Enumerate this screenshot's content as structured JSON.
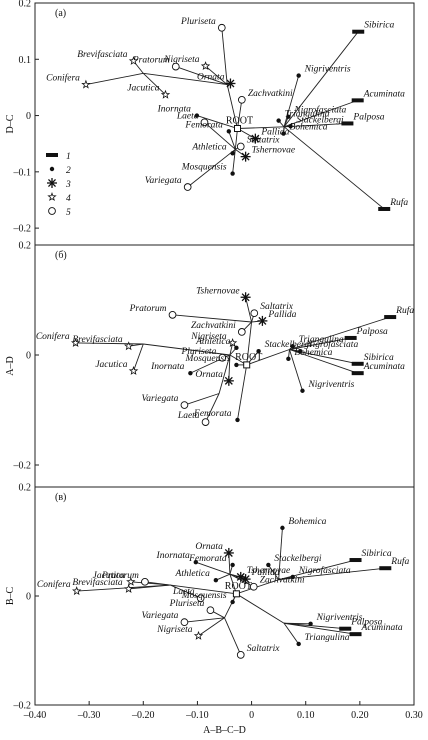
{
  "chart_data": [
    {
      "type": "tree-scatter",
      "panel_label": "(а)",
      "ylabel": "D–C",
      "xlim": [
        -0.4,
        0.3
      ],
      "ylim": [
        -0.23,
        0.2
      ],
      "yticks": [
        0.2,
        0.1,
        0,
        {
          "value": -0.1,
          "label": "–0.1"
        },
        {
          "value": -0.2,
          "label": "–0.2"
        }
      ],
      "legend": {
        "labels": [
          "1",
          "2",
          "3",
          "4",
          "5"
        ]
      },
      "root": {
        "label": "ROOT",
        "x": -0.026,
        "y": -0.023
      },
      "branches": [
        {
          "x": -0.045,
          "y": 0.055,
          "parent": null
        },
        {
          "x": -0.2,
          "y": 0.075,
          "parent": 0
        },
        {
          "x": 0.06,
          "y": -0.02,
          "parent": null
        },
        {
          "x": -0.03,
          "y": -0.06,
          "parent": null
        }
      ],
      "points": [
        {
          "label": "Sibirica",
          "group": 0,
          "x": 0.197,
          "y": 0.149,
          "parent": 2
        },
        {
          "label": "Acuminata",
          "group": 0,
          "x": 0.196,
          "y": 0.027,
          "parent": 2
        },
        {
          "label": "Palposa",
          "group": 0,
          "x": 0.177,
          "y": -0.014,
          "parent": 2
        },
        {
          "label": "Rufa",
          "group": 0,
          "x": 0.245,
          "y": -0.166,
          "parent": 2
        },
        {
          "label": "Nigriventris",
          "group": 1,
          "x": 0.087,
          "y": 0.071,
          "parent": 2
        },
        {
          "label": "Nigrofasciata",
          "group": 1,
          "x": 0.068,
          "y": -0.002,
          "parent": 2
        },
        {
          "label": "Triangulina",
          "group": 1,
          "x": 0.05,
          "y": -0.009,
          "parent": 2
        },
        {
          "label": "Stackelbergi",
          "group": 1,
          "x": 0.072,
          "y": -0.019,
          "parent": 2
        },
        {
          "label": "Bohemica",
          "group": 1,
          "x": 0.059,
          "y": -0.032,
          "parent": 2
        },
        {
          "label": "Pluriseta",
          "group": 4,
          "x": -0.055,
          "y": 0.156,
          "parent": 0
        },
        {
          "label": "Nigriseta",
          "group": 3,
          "x": -0.085,
          "y": 0.088,
          "parent": 0
        },
        {
          "label": "Pratorum",
          "group": 4,
          "x": -0.14,
          "y": 0.087,
          "parent": 0
        },
        {
          "label": "Ornata",
          "group": 2,
          "x": -0.039,
          "y": 0.057,
          "parent": 0
        },
        {
          "label": "Brevifasciata",
          "group": 3,
          "x": -0.218,
          "y": 0.097,
          "parent": 1
        },
        {
          "label": "Conifera",
          "group": 3,
          "x": -0.306,
          "y": 0.055,
          "parent": 1
        },
        {
          "label": "Jacutica",
          "group": 3,
          "x": -0.159,
          "y": 0.037,
          "parent": 1
        },
        {
          "label": "Zachvatkini",
          "group": 4,
          "x": -0.018,
          "y": 0.028,
          "parent": null
        },
        {
          "label": "Inornata",
          "group": 1,
          "x": -0.101,
          "y": 0.0,
          "parent": null
        },
        {
          "label": "Laeta",
          "group": 4,
          "x": -0.087,
          "y": -0.012,
          "parent": 3
        },
        {
          "label": "Pallida",
          "group": 2,
          "x": 0.007,
          "y": -0.041,
          "parent": null
        },
        {
          "label": "Femorata",
          "group": 1,
          "x": -0.042,
          "y": -0.028,
          "parent": 3
        },
        {
          "label": "Saltatrix",
          "group": 4,
          "x": -0.02,
          "y": -0.055,
          "parent": 3
        },
        {
          "label": "Athletica",
          "group": 1,
          "x": -0.035,
          "y": -0.067,
          "parent": 3
        },
        {
          "label": "Tshernovae",
          "group": 2,
          "x": -0.011,
          "y": -0.073,
          "parent": 3
        },
        {
          "label": "Mosquensis",
          "group": 1,
          "x": -0.035,
          "y": -0.103,
          "parent": 3
        },
        {
          "label": "Variegata",
          "group": 4,
          "x": -0.118,
          "y": -0.127,
          "parent": 3
        }
      ]
    },
    {
      "type": "tree-scatter",
      "panel_label": "(б)",
      "ylabel": "A–D",
      "xlim": [
        -0.4,
        0.3
      ],
      "ylim": [
        -0.24,
        0.2
      ],
      "yticks": [
        0.2,
        0,
        {
          "value": -0.2,
          "label": "–0.2"
        }
      ],
      "root": {
        "label": "ROOT",
        "x": -0.009,
        "y": -0.018
      },
      "branches": [
        {
          "x": 0.07,
          "y": 0.01,
          "parent": null
        },
        {
          "x": 0.0,
          "y": 0.06,
          "parent": null
        },
        {
          "x": -0.04,
          "y": 0.0,
          "parent": null
        },
        {
          "x": -0.2,
          "y": 0.02,
          "parent": 2
        },
        {
          "x": -0.06,
          "y": -0.07,
          "parent": 2
        }
      ],
      "points": [
        {
          "label": "Rufa",
          "group": 0,
          "x": 0.256,
          "y": 0.069,
          "parent": 0
        },
        {
          "label": "Palposa",
          "group": 0,
          "x": 0.183,
          "y": 0.031,
          "parent": 0
        },
        {
          "label": "Sibirica",
          "group": 0,
          "x": 0.196,
          "y": -0.016,
          "parent": 0
        },
        {
          "label": "Acuminata",
          "group": 0,
          "x": 0.196,
          "y": -0.033,
          "parent": 0
        },
        {
          "label": "Nigrofasciata",
          "group": 1,
          "x": 0.09,
          "y": 0.007,
          "parent": 0
        },
        {
          "label": "Triangulina",
          "group": 1,
          "x": 0.076,
          "y": 0.016,
          "parent": 0
        },
        {
          "label": "Bohemica",
          "group": 1,
          "x": 0.068,
          "y": -0.007,
          "parent": 0
        },
        {
          "label": "Nigriventris",
          "group": 1,
          "x": 0.094,
          "y": -0.065,
          "parent": 0
        },
        {
          "label": "Stackelbergi",
          "group": 1,
          "x": 0.013,
          "y": 0.007,
          "parent": null
        },
        {
          "label": "Tshernovae",
          "group": 2,
          "x": -0.011,
          "y": 0.105,
          "parent": 1
        },
        {
          "label": "Saltatrix",
          "group": 4,
          "x": 0.005,
          "y": 0.076,
          "parent": 1
        },
        {
          "label": "Pallida",
          "group": 2,
          "x": 0.02,
          "y": 0.062,
          "parent": 1
        },
        {
          "label": "Zachvatkini",
          "group": 4,
          "x": -0.018,
          "y": 0.042,
          "parent": 1
        },
        {
          "label": "Pratorum",
          "group": 4,
          "x": -0.146,
          "y": 0.073,
          "parent": 1
        },
        {
          "label": "Nigriseta",
          "group": 3,
          "x": -0.035,
          "y": 0.022,
          "parent": 2
        },
        {
          "label": "Athletica",
          "group": 1,
          "x": -0.028,
          "y": 0.013,
          "parent": 2
        },
        {
          "label": "Pluriseta",
          "group": 4,
          "x": -0.054,
          "y": -0.005,
          "parent": 2
        },
        {
          "label": "Mosquensis",
          "group": 1,
          "x": -0.028,
          "y": -0.018,
          "parent": null
        },
        {
          "label": "Ornata",
          "group": 2,
          "x": -0.042,
          "y": -0.047,
          "parent": 2
        },
        {
          "label": "Inornata",
          "group": 1,
          "x": -0.113,
          "y": -0.033,
          "parent": 2
        },
        {
          "label": "Jacutica",
          "group": 3,
          "x": -0.218,
          "y": -0.029,
          "parent": 3
        },
        {
          "label": "Brevifasciata",
          "group": 3,
          "x": -0.227,
          "y": 0.016,
          "parent": 3
        },
        {
          "label": "Conifera",
          "group": 3,
          "x": -0.325,
          "y": 0.022,
          "parent": 3
        },
        {
          "label": "Variegata",
          "group": 4,
          "x": -0.124,
          "y": -0.091,
          "parent": 4
        },
        {
          "label": "Laeta",
          "group": 4,
          "x": -0.085,
          "y": -0.122,
          "parent": 4
        },
        {
          "label": "Femorata",
          "group": 1,
          "x": -0.026,
          "y": -0.118,
          "parent": null
        }
      ]
    },
    {
      "type": "tree-scatter",
      "panel_label": "(в)",
      "ylabel": "B–C",
      "xlabel": "A–B–C–D",
      "xlim": [
        -0.4,
        0.3
      ],
      "ylim": [
        -0.2,
        0.2
      ],
      "xticks": [
        {
          "value": -0.4,
          "label": "–0.40"
        },
        {
          "value": -0.3,
          "label": "–0.30"
        },
        {
          "value": -0.2,
          "label": "–0.20"
        },
        {
          "value": -0.1,
          "label": "–0.10"
        },
        0,
        {
          "value": 0.1,
          "label": "0.10"
        },
        {
          "value": 0.2,
          "label": "0.20"
        },
        {
          "value": 0.3,
          "label": "0.30"
        }
      ],
      "yticks": [
        0.2,
        0,
        {
          "value": -0.2,
          "label": "–0.2"
        }
      ],
      "root": {
        "label": "ROOT",
        "x": -0.028,
        "y": 0.004
      },
      "branches": [
        {
          "x": 0.05,
          "y": 0.03,
          "parent": null
        },
        {
          "x": -0.04,
          "y": 0.04,
          "parent": null
        },
        {
          "x": -0.15,
          "y": 0.02,
          "parent": null
        },
        {
          "x": 0.06,
          "y": -0.05,
          "parent": null
        },
        {
          "x": -0.05,
          "y": -0.04,
          "parent": null
        }
      ],
      "points": [
        {
          "label": "Bohemica",
          "group": 1,
          "x": 0.057,
          "y": 0.125,
          "parent": 0
        },
        {
          "label": "Sibirica",
          "group": 0,
          "x": 0.192,
          "y": 0.066,
          "parent": 0
        },
        {
          "label": "Rufa",
          "group": 0,
          "x": 0.247,
          "y": 0.051,
          "parent": 0
        },
        {
          "label": "Nigrofasciata",
          "group": 1,
          "x": 0.076,
          "y": 0.035,
          "parent": 0
        },
        {
          "label": "Stackelbergi",
          "group": 1,
          "x": 0.031,
          "y": 0.057,
          "parent": 0
        },
        {
          "label": "Inornata",
          "group": 1,
          "x": -0.103,
          "y": 0.062,
          "parent": 1
        },
        {
          "label": "Ornata",
          "group": 2,
          "x": -0.042,
          "y": 0.079,
          "parent": 1
        },
        {
          "label": "Femorata",
          "group": 1,
          "x": -0.035,
          "y": 0.057,
          "parent": 1
        },
        {
          "label": "Athletica",
          "group": 1,
          "x": -0.066,
          "y": 0.029,
          "parent": 1
        },
        {
          "label": "Tshernovae",
          "group": 2,
          "x": -0.02,
          "y": 0.035,
          "parent": 1
        },
        {
          "label": "Pallida",
          "group": 2,
          "x": -0.011,
          "y": 0.031,
          "parent": 1
        },
        {
          "label": "Zachvatkini",
          "group": 4,
          "x": 0.004,
          "y": 0.017,
          "parent": 1
        },
        {
          "label": "Jacutica",
          "group": 3,
          "x": -0.223,
          "y": 0.026,
          "parent": 2
        },
        {
          "label": "Pratorum",
          "group": 4,
          "x": -0.197,
          "y": 0.026,
          "parent": 2
        },
        {
          "label": "Brevifasciata",
          "group": 3,
          "x": -0.227,
          "y": 0.013,
          "parent": 2
        },
        {
          "label": "Conifera",
          "group": 3,
          "x": -0.323,
          "y": 0.009,
          "parent": 2
        },
        {
          "label": "Laeta",
          "group": 4,
          "x": -0.094,
          "y": -0.004,
          "parent": 2
        },
        {
          "label": "Mosquensis",
          "group": 1,
          "x": -0.035,
          "y": -0.011,
          "parent": null
        },
        {
          "label": "Pluriseta",
          "group": 4,
          "x": -0.076,
          "y": -0.026,
          "parent": 4
        },
        {
          "label": "Variegata",
          "group": 4,
          "x": -0.124,
          "y": -0.048,
          "parent": 4
        },
        {
          "label": "Nigriseta",
          "group": 3,
          "x": -0.098,
          "y": -0.073,
          "parent": 4
        },
        {
          "label": "Saltatrix",
          "group": 4,
          "x": -0.02,
          "y": -0.108,
          "parent": 4
        },
        {
          "label": "Nigriventris",
          "group": 1,
          "x": 0.109,
          "y": -0.051,
          "parent": 3
        },
        {
          "label": "Palposa",
          "group": 0,
          "x": 0.173,
          "y": -0.06,
          "parent": 3
        },
        {
          "label": "Acuminata",
          "group": 0,
          "x": 0.192,
          "y": -0.07,
          "parent": 3
        },
        {
          "label": "Triangulina",
          "group": 1,
          "x": 0.087,
          "y": -0.088,
          "parent": 3
        }
      ]
    }
  ]
}
